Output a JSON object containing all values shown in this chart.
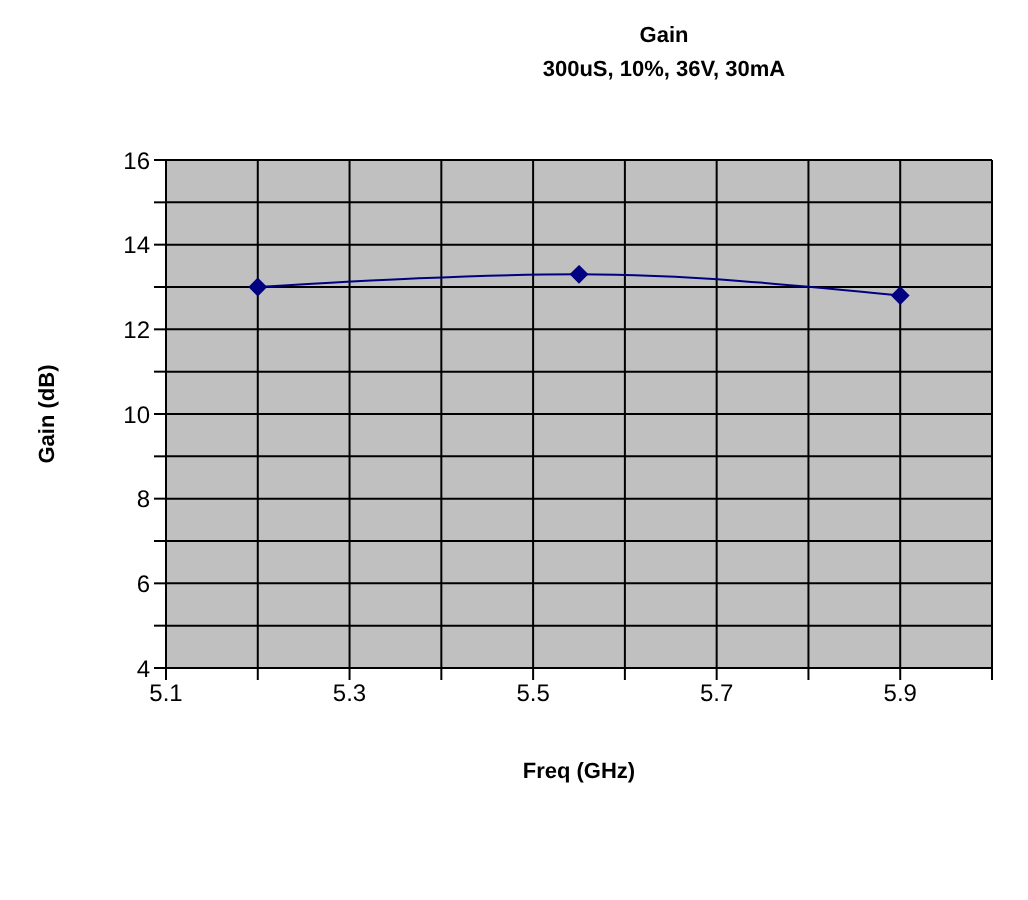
{
  "chart_data": {
    "type": "line",
    "title": "Gain",
    "subtitle": "300uS, 10%, 36V, 30mA",
    "xlabel": "Freq (GHz)",
    "ylabel": "Gain (dB)",
    "x": [
      5.2,
      5.55,
      5.9
    ],
    "series": [
      {
        "color": "#000080",
        "values": [
          13.0,
          13.3,
          12.8
        ]
      }
    ],
    "xlim": [
      5.1,
      6.0
    ],
    "xticks": [
      5.1,
      {
        "value": 5.2,
        "label": null
      },
      5.3,
      {
        "value": 5.4,
        "label": null
      },
      5.5,
      {
        "value": 5.6,
        "label": null
      },
      5.7,
      {
        "value": 5.8,
        "label": null
      },
      5.9,
      {
        "value": 6.0,
        "label": null
      }
    ],
    "ylim": [
      4,
      16
    ],
    "yticks": [
      4,
      {
        "value": 5,
        "label": null
      },
      6,
      {
        "value": 7,
        "label": null
      },
      8,
      {
        "value": 9,
        "label": null
      },
      10,
      {
        "value": 11,
        "label": null
      },
      12,
      {
        "value": 13,
        "label": null
      },
      14,
      {
        "value": 15,
        "label": null
      },
      16
    ],
    "grid": true,
    "marker": "diamond",
    "line_style": "solid"
  }
}
